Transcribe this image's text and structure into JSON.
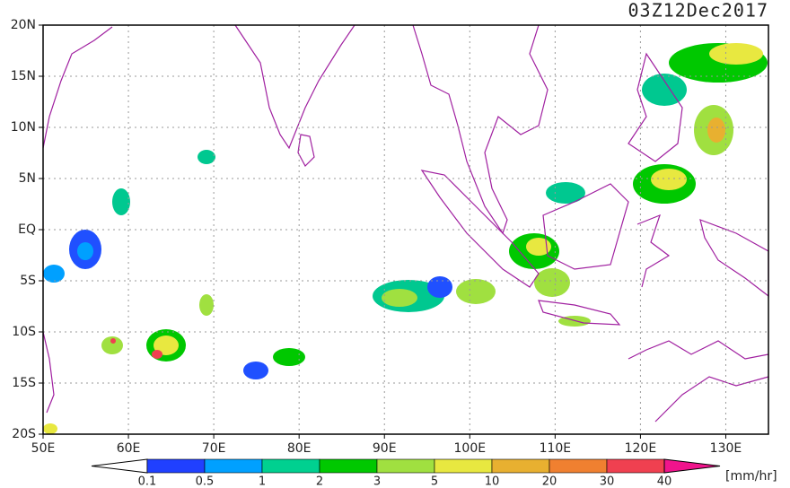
{
  "map": {
    "title": "03Z12Dec2017",
    "lon_range": [
      50,
      135
    ],
    "lat_range": [
      -20,
      20
    ],
    "lon_ticks": [
      {
        "value": 50,
        "label": "50E"
      },
      {
        "value": 60,
        "label": "60E"
      },
      {
        "value": 70,
        "label": "70E"
      },
      {
        "value": 80,
        "label": "80E"
      },
      {
        "value": 90,
        "label": "90E"
      },
      {
        "value": 100,
        "label": "100E"
      },
      {
        "value": 110,
        "label": "110E"
      },
      {
        "value": 120,
        "label": "120E"
      },
      {
        "value": 130,
        "label": "130E"
      }
    ],
    "lat_ticks": [
      {
        "value": 20,
        "label": "20N"
      },
      {
        "value": 15,
        "label": "15N"
      },
      {
        "value": 10,
        "label": "10N"
      },
      {
        "value": 5,
        "label": "5N"
      },
      {
        "value": 0,
        "label": "EQ"
      },
      {
        "value": -5,
        "label": "5S"
      },
      {
        "value": -10,
        "label": "10S"
      },
      {
        "value": -15,
        "label": "15S"
      },
      {
        "value": -20,
        "label": "20S"
      }
    ]
  },
  "colorbar": {
    "unit": "[mm/hr]",
    "levels": [
      0.1,
      0.5,
      1,
      2,
      3,
      5,
      10,
      20,
      30,
      40
    ],
    "under_color": "#ffffff",
    "over_color": "#f0148c",
    "colors": [
      "#2040ff",
      "#00a0ff",
      "#00d090",
      "#00c800",
      "#a0e040",
      "#e8e840",
      "#e8b030",
      "#f08030",
      "#f04050"
    ]
  }
}
